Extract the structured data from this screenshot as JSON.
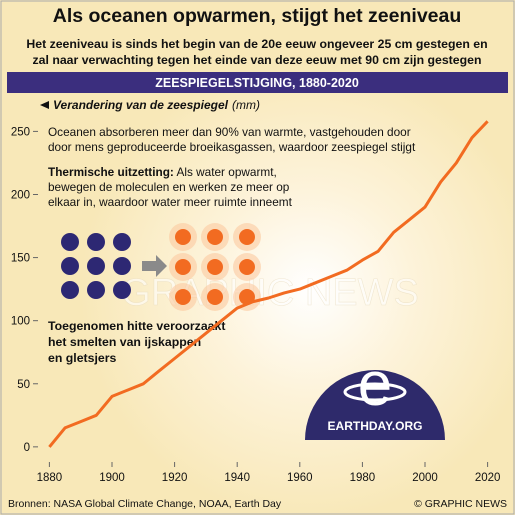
{
  "header": {
    "title": "Als oceanen opwarmen, stijgt het zeeniveau",
    "subtitle_lines": [
      "Het zeeniveau is sinds het begin van de 20e eeuw ongeveer 25 cm gestegen en",
      "zal naar verwachting tegen het einde van deze eeuw met 90 cm zijn gestegen"
    ]
  },
  "chart_data": {
    "type": "line",
    "banner": "ZEESPIEGELSTIJGING, 1880-2020",
    "y_label": "Verandering van de zeespiegel",
    "y_unit": "(mm)",
    "x": [
      1880,
      1885,
      1890,
      1895,
      1900,
      1905,
      1910,
      1915,
      1920,
      1925,
      1930,
      1935,
      1940,
      1945,
      1950,
      1955,
      1960,
      1965,
      1970,
      1975,
      1980,
      1985,
      1990,
      1995,
      2000,
      2005,
      2010,
      2015,
      2020
    ],
    "values": [
      0,
      15,
      20,
      25,
      40,
      45,
      50,
      60,
      70,
      80,
      90,
      100,
      110,
      115,
      118,
      122,
      125,
      130,
      135,
      140,
      148,
      155,
      170,
      180,
      190,
      210,
      225,
      245,
      258
    ],
    "color": "#f26b21",
    "xlim": [
      1877,
      2023
    ],
    "ylim": [
      -12,
      263
    ],
    "xticks": [
      1880,
      1900,
      1920,
      1940,
      1960,
      1980,
      2000,
      2020
    ],
    "yticks": [
      0,
      50,
      100,
      150,
      200,
      250
    ],
    "annotations": {
      "oceans": [
        "Oceanen absorberen meer dan 90% van warmte, vastgehouden door",
        "door mens geproduceerde broeikasgassen, waardoor zeespiegel stijgt"
      ],
      "thermal_head": "Thermische uitzetting:",
      "thermal_lines": [
        " Als water opwarmt,",
        "bewegen de moleculen en werken ze meer op",
        "elkaar in, waardoor water meer ruimte inneemt"
      ],
      "melting": [
        "Toegenomen hitte veroorzaakt",
        "het smelten van ijskappen",
        "en gletsjers"
      ]
    }
  },
  "logo": {
    "letter": "e",
    "text": "EARTHDAY.ORG"
  },
  "watermark": "GRAPHIC NEWS",
  "footer": {
    "sources": "Bronnen: NASA Global Climate Change, NOAA, Earth Day",
    "credit": "© GRAPHIC NEWS"
  }
}
